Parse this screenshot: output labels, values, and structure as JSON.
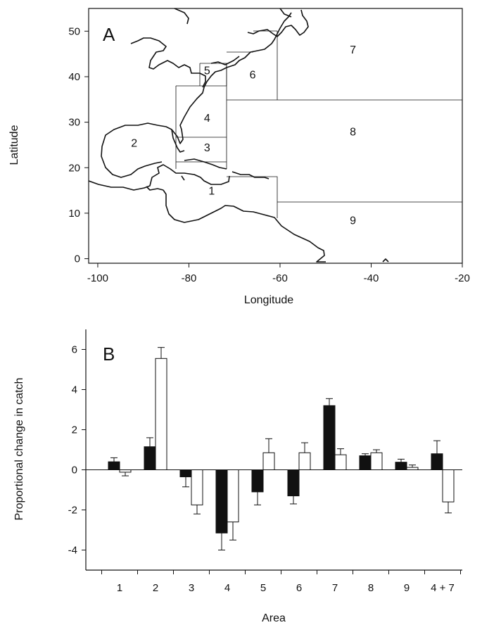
{
  "chart_data": [
    {
      "type": "map",
      "panel_label": "A",
      "xlabel": "Longitude",
      "ylabel": "Latitude",
      "xlim": [
        -102,
        -20
      ],
      "ylim": [
        -1,
        55
      ],
      "xticks": [
        -100,
        -80,
        -60,
        -40,
        -20
      ],
      "yticks": [
        0,
        10,
        20,
        30,
        40,
        50
      ],
      "area_labels": [
        {
          "text": "1",
          "lon": -75,
          "lat": 15
        },
        {
          "text": "2",
          "lon": -92,
          "lat": 25.5
        },
        {
          "text": "3",
          "lon": -76,
          "lat": 24.5
        },
        {
          "text": "4",
          "lon": -76,
          "lat": 31
        },
        {
          "text": "5",
          "lon": -76,
          "lat": 41.5
        },
        {
          "text": "6",
          "lon": -66,
          "lat": 40.5
        },
        {
          "text": "7",
          "lon": -44,
          "lat": 46
        },
        {
          "text": "8",
          "lon": -44,
          "lat": 28
        },
        {
          "text": "9",
          "lon": -44,
          "lat": 8.5
        }
      ]
    },
    {
      "type": "bar",
      "panel_label": "B",
      "xlabel": "Area",
      "ylabel": "Proportional change in catch",
      "ylim": [
        -5,
        7
      ],
      "yticks": [
        -4,
        -2,
        0,
        2,
        4,
        6
      ],
      "categories": [
        "1",
        "2",
        "3",
        "4",
        "5",
        "6",
        "7",
        "8",
        "9",
        "4 + 7"
      ],
      "series": [
        {
          "fill": "#111111",
          "values": [
            0.4,
            1.15,
            -0.35,
            -3.15,
            -1.1,
            -1.3,
            3.2,
            0.7,
            0.38,
            0.8
          ],
          "errors": [
            0.2,
            0.45,
            0.5,
            0.85,
            0.65,
            0.4,
            0.35,
            0.1,
            0.15,
            0.65
          ]
        },
        {
          "fill": "#ffffff",
          "values": [
            -0.12,
            5.55,
            -1.75,
            -2.6,
            0.85,
            0.85,
            0.75,
            0.85,
            0.12,
            -1.6
          ],
          "errors": [
            0.18,
            0.55,
            0.45,
            0.9,
            0.7,
            0.5,
            0.3,
            0.15,
            0.12,
            0.55
          ]
        }
      ]
    }
  ]
}
